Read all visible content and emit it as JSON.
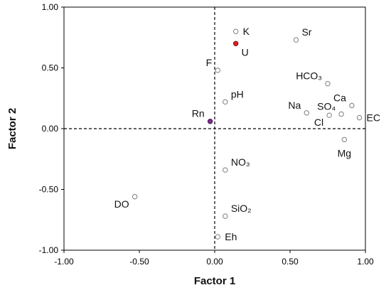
{
  "chart_data": {
    "type": "scatter",
    "title": "",
    "xlabel": "Factor 1",
    "ylabel": "Factor 2",
    "xlim": [
      -1.0,
      1.0
    ],
    "ylim": [
      -1.0,
      1.0
    ],
    "xticks": [
      -1.0,
      -0.5,
      0.0,
      0.5,
      1.0
    ],
    "yticks": [
      -1.0,
      -0.5,
      0.0,
      0.5,
      1.0
    ],
    "xtick_labels": [
      "-1.00",
      "-0.50",
      "0.00",
      "0.50",
      "1.00"
    ],
    "ytick_labels": [
      "-1.00",
      "-0.50",
      "0.00",
      "0.50",
      "1.00"
    ],
    "grid": false,
    "reference_lines": {
      "x": 0,
      "y": 0,
      "style": "dashed"
    },
    "colors": {
      "default_marker": "#ffffff",
      "default_stroke": "#7f7f7f",
      "U": "#e02020",
      "Rn": "#7b2d8e"
    },
    "points": [
      {
        "label": "K",
        "x": 0.14,
        "y": 0.8,
        "anchor": "right",
        "color": "#111111",
        "fill": "open"
      },
      {
        "label": "U",
        "x": 0.14,
        "y": 0.7,
        "anchor": "below-right",
        "color": "#e02020",
        "fill": "red"
      },
      {
        "label": "Sr",
        "x": 0.54,
        "y": 0.73,
        "anchor": "above-right",
        "color": "#111111",
        "fill": "open"
      },
      {
        "label": "F",
        "x": 0.02,
        "y": 0.48,
        "anchor": "above-left",
        "color": "#111111",
        "fill": "open"
      },
      {
        "label": "pH",
        "x": 0.07,
        "y": 0.22,
        "anchor": "above-right",
        "color": "#111111",
        "fill": "open"
      },
      {
        "label": "Rn",
        "x": -0.03,
        "y": 0.06,
        "anchor": "above-left",
        "color": "#7b2d8e",
        "fill": "purple"
      },
      {
        "label": "HCO₃",
        "x": 0.75,
        "y": 0.37,
        "anchor": "above-left",
        "color": "#111111",
        "fill": "open"
      },
      {
        "label": "Ca",
        "x": 0.91,
        "y": 0.19,
        "anchor": "above-left",
        "color": "#111111",
        "fill": "open"
      },
      {
        "label": "Na",
        "x": 0.61,
        "y": 0.13,
        "anchor": "above-left",
        "color": "#111111",
        "fill": "open"
      },
      {
        "label": "SO₄",
        "x": 0.84,
        "y": 0.12,
        "anchor": "above-left",
        "color": "#111111",
        "fill": "open"
      },
      {
        "label": "Cl",
        "x": 0.76,
        "y": 0.11,
        "anchor": "below-left",
        "color": "#111111",
        "fill": "open"
      },
      {
        "label": "EC",
        "x": 0.96,
        "y": 0.09,
        "anchor": "right",
        "color": "#111111",
        "fill": "open"
      },
      {
        "label": "Mg",
        "x": 0.86,
        "y": -0.09,
        "anchor": "below",
        "color": "#111111",
        "fill": "open"
      },
      {
        "label": "NO₃",
        "x": 0.07,
        "y": -0.34,
        "anchor": "above-right",
        "color": "#111111",
        "fill": "open"
      },
      {
        "label": "DO",
        "x": -0.53,
        "y": -0.56,
        "anchor": "below-left",
        "color": "#111111",
        "fill": "open"
      },
      {
        "label": "SiO₂",
        "x": 0.07,
        "y": -0.72,
        "anchor": "above-right",
        "color": "#111111",
        "fill": "open"
      },
      {
        "label": "Eh",
        "x": 0.02,
        "y": -0.89,
        "anchor": "right",
        "color": "#111111",
        "fill": "open"
      }
    ]
  }
}
